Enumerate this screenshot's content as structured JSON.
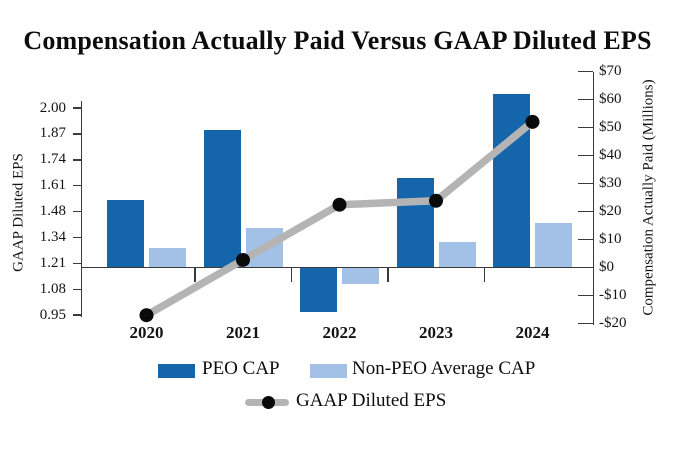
{
  "title": "Compensation Actually Paid Versus GAAP Diluted EPS",
  "colors": {
    "peo_bar": "#1565AB",
    "non_peo_bar": "#A3C1E6",
    "eps_line": "#B4B4B4",
    "eps_marker": "#0A0A0A",
    "axis": "#3A3A3A"
  },
  "chart_data": {
    "type": "bar",
    "subtype": "combo-bar-line-dual-axis",
    "title": "Compensation Actually Paid Versus GAAP Diluted EPS",
    "categories": [
      "2020",
      "2021",
      "2022",
      "2023",
      "2024"
    ],
    "series": [
      {
        "name": "PEO CAP",
        "type": "bar",
        "axis": "right",
        "color": "#1565AB",
        "values": [
          24,
          49,
          -16,
          32,
          62
        ]
      },
      {
        "name": "Non-PEO Average CAP",
        "type": "bar",
        "axis": "right",
        "color": "#A3C1E6",
        "values": [
          7,
          14,
          -6,
          9,
          16
        ]
      },
      {
        "name": "GAAP Diluted EPS",
        "type": "line",
        "axis": "left",
        "color": "#B4B4B4",
        "marker_color": "#0A0A0A",
        "values": [
          0.95,
          1.23,
          1.51,
          1.53,
          1.93
        ]
      }
    ],
    "left_axis": {
      "label": "GAAP Diluted EPS",
      "min": 0.95,
      "max": 2.0,
      "tick_labels": [
        "2.00",
        "1.87",
        "1.74",
        "1.61",
        "1.48",
        "1.34",
        "1.21",
        "1.08",
        "0.95"
      ]
    },
    "right_axis": {
      "label": "Compensation Actually Paid (Millions)",
      "min": -20,
      "max": 70,
      "tick_labels": [
        "$70",
        "$60",
        "$50",
        "$40",
        "$30",
        "$20",
        "$10",
        "$0",
        "-$10",
        "-$20"
      ]
    },
    "grid": false,
    "legend_position": "bottom"
  }
}
